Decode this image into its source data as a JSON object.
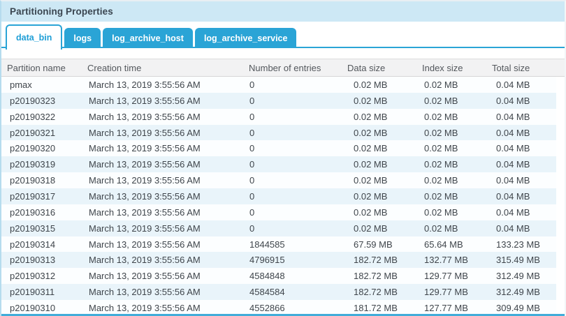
{
  "panel": {
    "title": "Partitioning Properties"
  },
  "tabs": [
    {
      "label": "data_bin",
      "active": true
    },
    {
      "label": "logs",
      "active": false
    },
    {
      "label": "log_archive_host",
      "active": false
    },
    {
      "label": "log_archive_service",
      "active": false
    }
  ],
  "table": {
    "columns": [
      "Partition name",
      "Creation time",
      "Number of entries",
      "Data size",
      "Index size",
      "Total size"
    ],
    "rows": [
      [
        "pmax",
        "March 13, 2019 3:55:56 AM",
        "0",
        "0.02 MB",
        "0.02 MB",
        "0.04 MB"
      ],
      [
        "p20190323",
        "March 13, 2019 3:55:56 AM",
        "0",
        "0.02 MB",
        "0.02 MB",
        "0.04 MB"
      ],
      [
        "p20190322",
        "March 13, 2019 3:55:56 AM",
        "0",
        "0.02 MB",
        "0.02 MB",
        "0.04 MB"
      ],
      [
        "p20190321",
        "March 13, 2019 3:55:56 AM",
        "0",
        "0.02 MB",
        "0.02 MB",
        "0.04 MB"
      ],
      [
        "p20190320",
        "March 13, 2019 3:55:56 AM",
        "0",
        "0.02 MB",
        "0.02 MB",
        "0.04 MB"
      ],
      [
        "p20190319",
        "March 13, 2019 3:55:56 AM",
        "0",
        "0.02 MB",
        "0.02 MB",
        "0.04 MB"
      ],
      [
        "p20190318",
        "March 13, 2019 3:55:56 AM",
        "0",
        "0.02 MB",
        "0.02 MB",
        "0.04 MB"
      ],
      [
        "p20190317",
        "March 13, 2019 3:55:56 AM",
        "0",
        "0.02 MB",
        "0.02 MB",
        "0.04 MB"
      ],
      [
        "p20190316",
        "March 13, 2019 3:55:56 AM",
        "0",
        "0.02 MB",
        "0.02 MB",
        "0.04 MB"
      ],
      [
        "p20190315",
        "March 13, 2019 3:55:56 AM",
        "0",
        "0.02 MB",
        "0.02 MB",
        "0.04 MB"
      ],
      [
        "p20190314",
        "March 13, 2019 3:55:56 AM",
        "1844585",
        "67.59 MB",
        "65.64 MB",
        "133.23 MB"
      ],
      [
        "p20190313",
        "March 13, 2019 3:55:56 AM",
        "4796915",
        "182.72 MB",
        "132.77 MB",
        "315.49 MB"
      ],
      [
        "p20190312",
        "March 13, 2019 3:55:56 AM",
        "4584848",
        "182.72 MB",
        "129.77 MB",
        "312.49 MB"
      ],
      [
        "p20190311",
        "March 13, 2019 3:55:56 AM",
        "4584584",
        "182.72 MB",
        "129.77 MB",
        "312.49 MB"
      ],
      [
        "p20190310",
        "March 13, 2019 3:55:56 AM",
        "4552866",
        "181.72 MB",
        "127.77 MB",
        "309.49 MB"
      ]
    ]
  },
  "colors": {
    "title_band": "#cde8f5",
    "tab_blue": "#2aa4d6",
    "active_tab_text": "#1e9ed6",
    "header_bg": "#f2f2f3",
    "row_alt": "#e9f4fa",
    "bottom_bar": "#41acd9"
  }
}
